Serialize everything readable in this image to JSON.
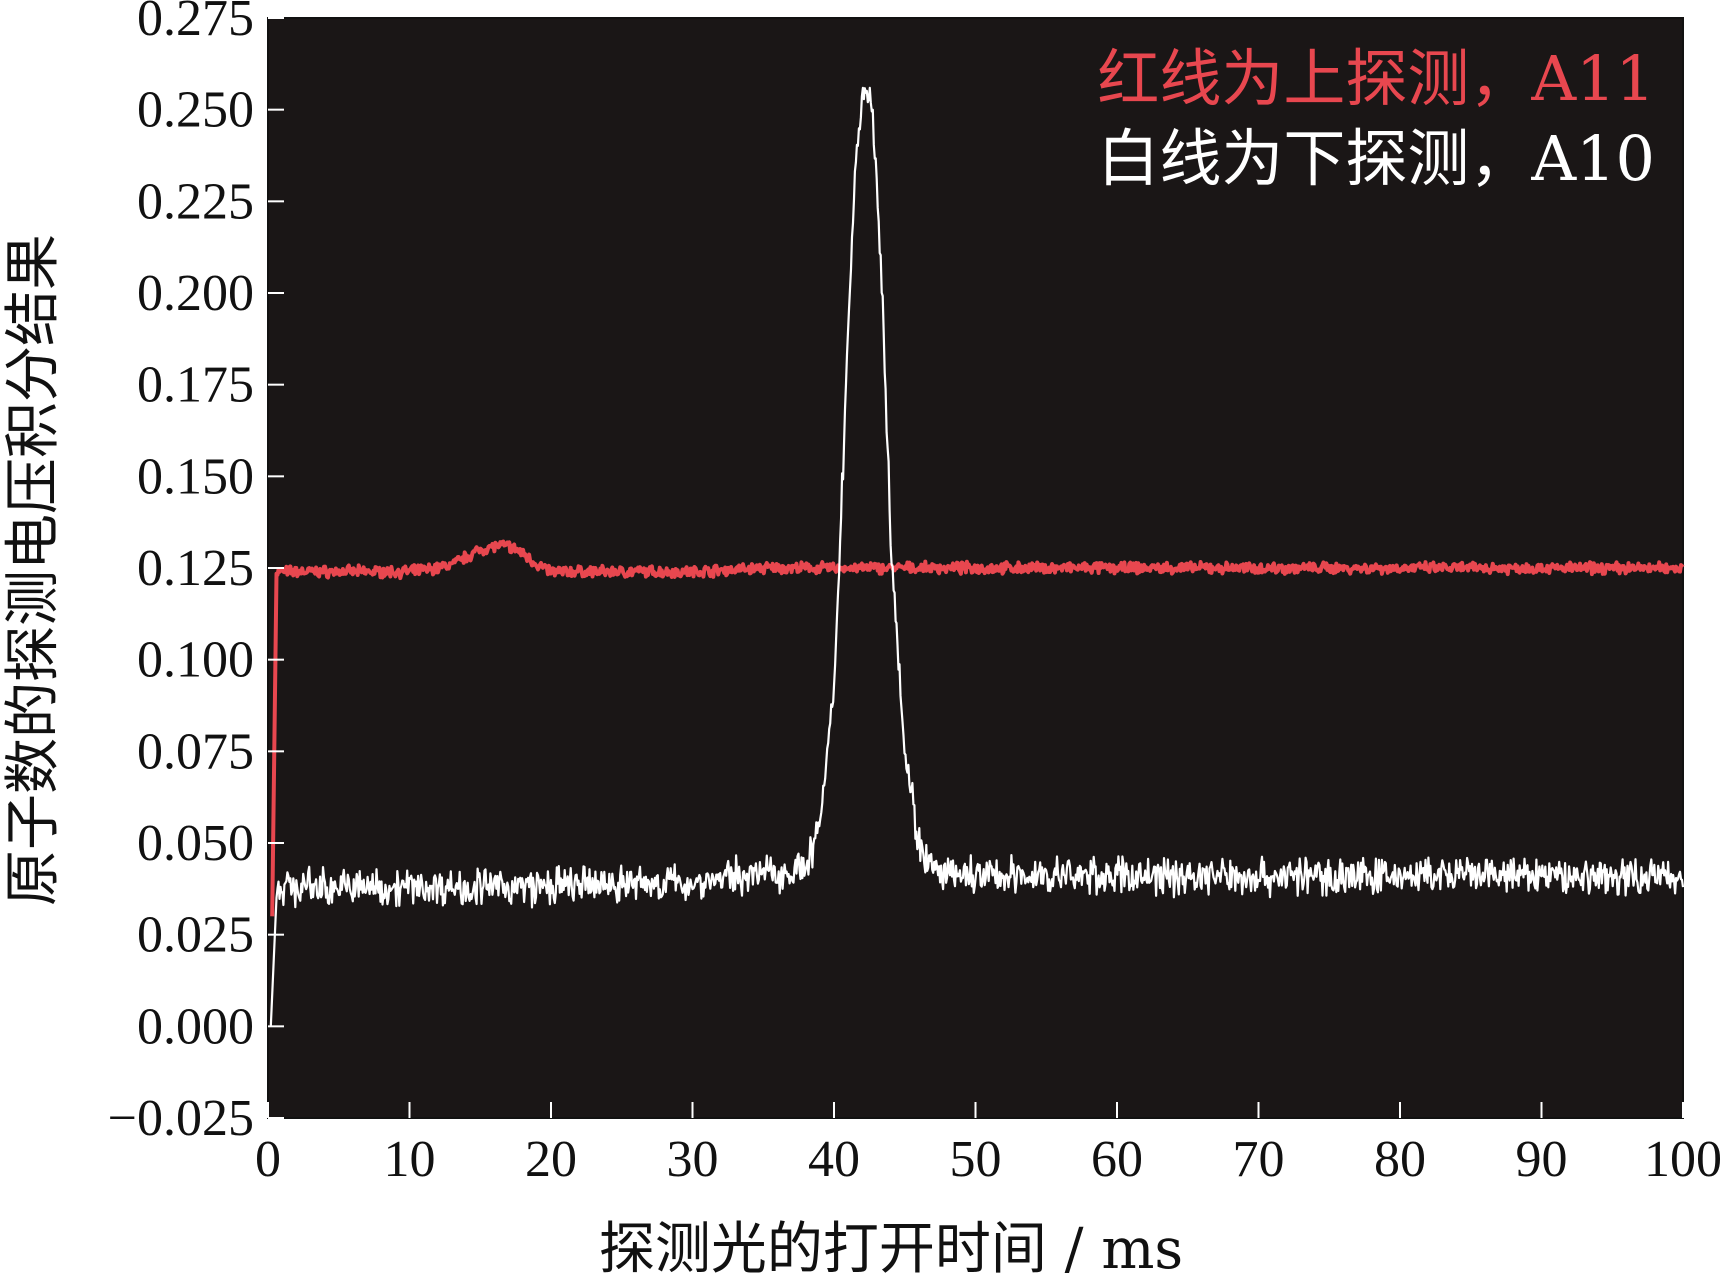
{
  "chart_data": {
    "type": "line",
    "xlabel": "探测光的打开时间 / ms",
    "ylabel": "原子数的探测电压积分结果",
    "xlim": [
      0,
      100
    ],
    "ylim": [
      -0.025,
      0.275
    ],
    "x_ticks": [
      "0",
      "10",
      "20",
      "30",
      "40",
      "50",
      "60",
      "70",
      "80",
      "90",
      "100"
    ],
    "y_ticks": [
      "−0.025",
      "0.000",
      "0.025",
      "0.050",
      "0.075",
      "0.100",
      "0.125",
      "0.150",
      "0.175",
      "0.200",
      "0.225",
      "0.250",
      "0.275"
    ],
    "grid": false,
    "legend_position": "top-right",
    "background": "#1a1616",
    "annotations": [
      {
        "text": "红线为上探测，A11",
        "color": "#e8474f"
      },
      {
        "text": "白线为下探测，A10",
        "color": "#ffffff"
      }
    ],
    "series": [
      {
        "color": "#e8474f",
        "x": [
          0.3,
          0.5,
          0.6,
          1,
          5,
          10,
          12,
          13,
          14,
          15,
          16,
          17,
          18,
          19,
          20,
          22,
          25,
          30,
          35,
          40,
          50,
          60,
          70,
          80,
          90,
          100
        ],
        "y": [
          0.03,
          0.03,
          0.124,
          0.124,
          0.124,
          0.124,
          0.125,
          0.126,
          0.128,
          0.13,
          0.131,
          0.131,
          0.129,
          0.126,
          0.124,
          0.124,
          0.124,
          0.124,
          0.125,
          0.125,
          0.125,
          0.125,
          0.125,
          0.125,
          0.125,
          0.125
        ]
      },
      {
        "color": "#ffffff",
        "x": [
          0.2,
          0.4,
          0.6,
          1,
          5,
          10,
          15,
          20,
          25,
          30,
          33,
          36,
          38,
          39,
          40,
          40.5,
          41,
          41.5,
          42,
          42.5,
          43,
          43.5,
          44,
          45,
          46,
          47,
          48,
          50,
          55,
          60,
          65,
          70,
          75,
          80,
          85,
          90,
          95,
          100
        ],
        "y": [
          0.0,
          0.0,
          0.038,
          0.038,
          0.038,
          0.038,
          0.038,
          0.038,
          0.039,
          0.039,
          0.041,
          0.042,
          0.043,
          0.055,
          0.09,
          0.14,
          0.19,
          0.235,
          0.254,
          0.255,
          0.235,
          0.19,
          0.135,
          0.075,
          0.05,
          0.042,
          0.041,
          0.041,
          0.041,
          0.041,
          0.041,
          0.041,
          0.041,
          0.041,
          0.041,
          0.041,
          0.041,
          0.041
        ]
      }
    ]
  }
}
